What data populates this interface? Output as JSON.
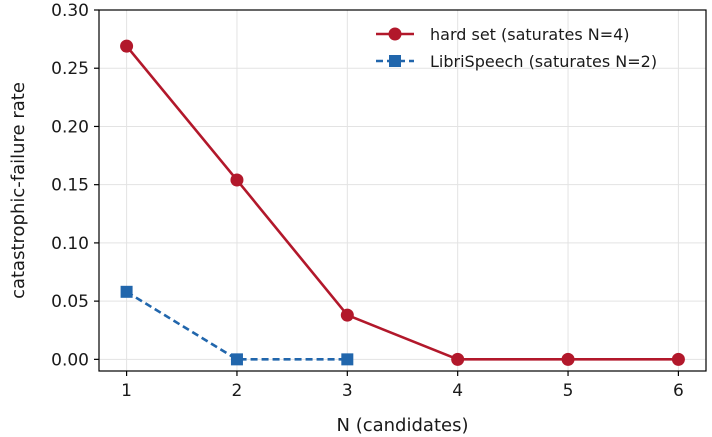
{
  "chart_data": {
    "type": "line",
    "title": "",
    "xlabel": "N (candidates)",
    "ylabel": "catastrophic-failure rate",
    "xlim": [
      0.75,
      6.25
    ],
    "ylim": [
      -0.01,
      0.3
    ],
    "xticks": [
      1,
      2,
      3,
      4,
      5,
      6
    ],
    "xtick_labels": [
      "1",
      "2",
      "3",
      "4",
      "5",
      "6"
    ],
    "yticks": [
      0.0,
      0.05,
      0.1,
      0.15,
      0.2,
      0.25,
      0.3
    ],
    "ytick_labels": [
      "0.00",
      "0.05",
      "0.10",
      "0.15",
      "0.20",
      "0.25",
      "0.30"
    ],
    "grid": true,
    "legend_position": "top-right",
    "series": [
      {
        "name": "hard set (saturates N=4)",
        "x": [
          1,
          2,
          3,
          4,
          5,
          6
        ],
        "values": [
          0.269,
          0.154,
          0.038,
          0.0,
          0.0,
          0.0
        ],
        "color": "#b2182b",
        "marker": "circle",
        "line_style": "solid"
      },
      {
        "name": "LibriSpeech (saturates N=2)",
        "x": [
          1,
          2,
          3
        ],
        "values": [
          0.058,
          0.0,
          0.0
        ],
        "color": "#2166ac",
        "marker": "square",
        "line_style": "dashed"
      }
    ]
  }
}
